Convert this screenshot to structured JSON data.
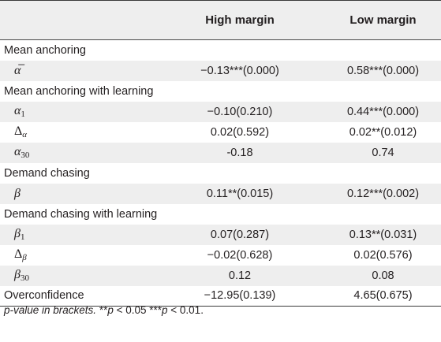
{
  "table": {
    "columns": [
      "",
      "High margin",
      "Low margin"
    ],
    "rows": [
      {
        "type": "group",
        "label": "Mean anchoring"
      },
      {
        "type": "param",
        "label": "α̅",
        "high": "−0.13***(0.000)",
        "low": "0.58***(0.000)"
      },
      {
        "type": "group",
        "label": "Mean anchoring with learning"
      },
      {
        "type": "param",
        "label": "α1",
        "high": "−0.10(0.210)",
        "low": "0.44***(0.000)"
      },
      {
        "type": "param",
        "label": "Δα",
        "high": "0.02(0.592)",
        "low": "0.02**(0.012)"
      },
      {
        "type": "param",
        "label": "α30",
        "high": "-0.18",
        "low": "0.74"
      },
      {
        "type": "group",
        "label": "Demand chasing"
      },
      {
        "type": "param",
        "label": "β",
        "high": "0.11**(0.015)",
        "low": "0.12***(0.002)"
      },
      {
        "type": "group",
        "label": "Demand chasing with learning"
      },
      {
        "type": "param",
        "label": "β1",
        "high": "0.07(0.287)",
        "low": "0.13**(0.031)"
      },
      {
        "type": "param",
        "label": "Δβ",
        "high": "−0.02(0.628)",
        "low": "0.02(0.576)"
      },
      {
        "type": "param",
        "label": "β30",
        "high": "0.12",
        "low": "0.08"
      },
      {
        "type": "param",
        "label": "Overconfidence",
        "high": "−12.95(0.139)",
        "low": "4.65(0.675)"
      }
    ]
  },
  "footnote": {
    "part1": "p-value in brackets.",
    "part2": " **",
    "p_symbol": "p",
    "part3": " < 0.05 ***",
    "part4": " < 0.01."
  }
}
